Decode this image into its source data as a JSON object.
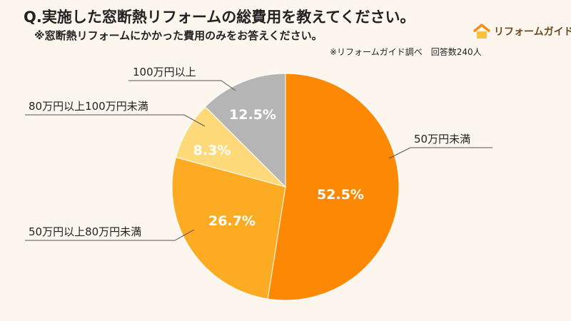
{
  "title": "Q.実施した窓断熱リフォームの総費用を教えてください。",
  "subtitle": "※窓断熱リフォームにかかった費用のみをお答えください。",
  "source": "※リフォームガイド調べ　回答数240人",
  "logo": {
    "text": "リフォームガイド",
    "icon": "house-icon",
    "color": "#f39a1e"
  },
  "chart_data": {
    "type": "pie",
    "start": "top",
    "direction": "clockwise",
    "slices": [
      {
        "label": "50万円未満",
        "value": 52.5,
        "display": "52.5%",
        "color": "#fd8803"
      },
      {
        "label": "50万円以上80万円未満",
        "value": 26.7,
        "display": "26.7%",
        "color": "#fcab22"
      },
      {
        "label": "80万円以上100万円未満",
        "value": 8.3,
        "display": "8.3%",
        "color": "#ffda7a"
      },
      {
        "label": "100万円以上",
        "value": 12.5,
        "display": "12.5%",
        "color": "#b5b5b5"
      }
    ]
  }
}
